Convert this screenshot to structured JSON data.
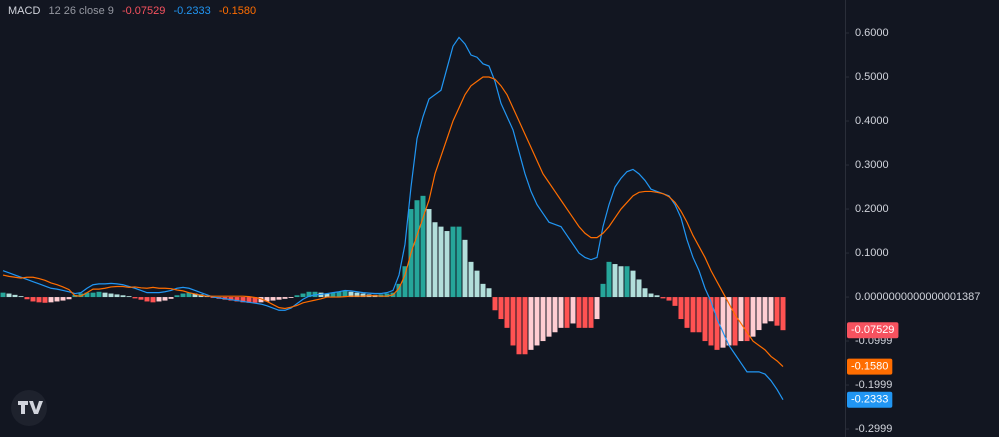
{
  "chart_data": {
    "type": "macd",
    "indicator": "MACD",
    "params": "12 26 close 9",
    "ylim": [
      -0.318,
      0.675
    ],
    "yticks": [
      {
        "value": 0.6,
        "label": "0.6000"
      },
      {
        "value": 0.5,
        "label": "0.5000"
      },
      {
        "value": 0.4,
        "label": "0.4000"
      },
      {
        "value": 0.3,
        "label": "0.3000"
      },
      {
        "value": 0.2,
        "label": "0.2000"
      },
      {
        "value": 0.1,
        "label": "0.1000"
      },
      {
        "value": 1.387e-16,
        "label": "0.0000000000000001387"
      },
      -0.0999,
      -0.1999,
      -0.2999
    ],
    "histogram_colors": {
      "rising_positive": "#26a69a",
      "falling_positive": "#b2dfdb",
      "falling_negative": "#ff5252",
      "rising_negative": "#ffcdd2"
    },
    "series": [
      {
        "color": "#f7525f",
        "last_label": "-0.07529",
        "values": [
          0.01,
          0.008,
          0.005,
          0.002,
          -0.005,
          -0.01,
          -0.012,
          -0.013,
          -0.012,
          -0.01,
          -0.008,
          -0.005,
          0.005,
          0.008,
          0.01,
          0.01,
          0.012,
          0.01,
          0.008,
          0.006,
          0.004,
          0.002,
          -0.003,
          -0.006,
          -0.01,
          -0.012,
          -0.01,
          -0.008,
          -0.004,
          0.004,
          0.008,
          0.01,
          0.008,
          0.006,
          0.003,
          -0.002,
          -0.004,
          -0.006,
          -0.008,
          -0.01,
          -0.012,
          -0.013,
          -0.013,
          -0.012,
          -0.01,
          -0.008,
          -0.006,
          -0.004,
          -0.002,
          0.004,
          0.008,
          0.012,
          0.012,
          0.01,
          0.008,
          0.01,
          0.012,
          0.014,
          0.012,
          0.01,
          0.008,
          0.006,
          0.005,
          0.006,
          0.008,
          0.01,
          0.03,
          0.07,
          0.2,
          0.22,
          0.23,
          0.2,
          0.17,
          0.16,
          0.15,
          0.16,
          0.16,
          0.13,
          0.08,
          0.06,
          0.03,
          0.02,
          -0.03,
          -0.05,
          -0.07,
          -0.11,
          -0.13,
          -0.13,
          -0.12,
          -0.11,
          -0.1,
          -0.09,
          -0.08,
          -0.07,
          -0.07,
          -0.06,
          -0.07,
          -0.07,
          -0.07,
          -0.05,
          0.03,
          0.08,
          0.075,
          0.07,
          0.07,
          0.06,
          0.04,
          0.02,
          0.008,
          0.004,
          -0.003,
          -0.008,
          -0.02,
          -0.05,
          -0.07,
          -0.08,
          -0.08,
          -0.1,
          -0.11,
          -0.12,
          -0.115,
          -0.11,
          -0.11,
          -0.1,
          -0.1,
          -0.09,
          -0.075,
          -0.06,
          -0.055,
          -0.065,
          -0.07529
        ]
      },
      {
        "color": "#2196f3",
        "last_label": "-0.2333",
        "values": [
          0.06,
          0.055,
          0.05,
          0.045,
          0.04,
          0.035,
          0.03,
          0.025,
          0.02,
          0.018,
          0.015,
          0.012,
          0.008,
          0.01,
          0.02,
          0.028,
          0.03,
          0.03,
          0.031,
          0.03,
          0.028,
          0.024,
          0.02,
          0.015,
          0.01,
          0.01,
          0.01,
          0.012,
          0.015,
          0.02,
          0.022,
          0.02,
          0.015,
          0.01,
          0.005,
          0.0,
          -0.002,
          -0.004,
          -0.006,
          -0.008,
          -0.01,
          -0.012,
          -0.014,
          -0.016,
          -0.02,
          -0.025,
          -0.03,
          -0.03,
          -0.025,
          -0.015,
          -0.005,
          0.002,
          0.005,
          0.006,
          0.008,
          0.01,
          0.012,
          0.015,
          0.014,
          0.012,
          0.01,
          0.009,
          0.008,
          0.008,
          0.01,
          0.015,
          0.05,
          0.12,
          0.25,
          0.36,
          0.41,
          0.45,
          0.46,
          0.47,
          0.52,
          0.57,
          0.59,
          0.575,
          0.55,
          0.545,
          0.53,
          0.525,
          0.49,
          0.44,
          0.41,
          0.38,
          0.33,
          0.28,
          0.24,
          0.21,
          0.19,
          0.17,
          0.165,
          0.16,
          0.14,
          0.12,
          0.1,
          0.09,
          0.085,
          0.09,
          0.16,
          0.21,
          0.25,
          0.27,
          0.285,
          0.29,
          0.28,
          0.265,
          0.245,
          0.24,
          0.235,
          0.23,
          0.21,
          0.18,
          0.13,
          0.09,
          0.06,
          0.02,
          -0.01,
          -0.05,
          -0.08,
          -0.11,
          -0.13,
          -0.15,
          -0.17,
          -0.17,
          -0.17,
          -0.175,
          -0.19,
          -0.21,
          -0.2333
        ]
      },
      {
        "color": "#ff6d00",
        "last_label": "-0.1580",
        "values": [
          0.05,
          0.047,
          0.045,
          0.043,
          0.045,
          0.045,
          0.042,
          0.038,
          0.032,
          0.028,
          0.023,
          0.017,
          0.003,
          0.002,
          0.01,
          0.018,
          0.018,
          0.02,
          0.023,
          0.024,
          0.024,
          0.022,
          0.023,
          0.021,
          0.02,
          0.022,
          0.02,
          0.02,
          0.019,
          0.016,
          0.014,
          0.01,
          0.007,
          0.004,
          0.002,
          0.002,
          0.002,
          0.002,
          0.002,
          0.002,
          0.002,
          0.001,
          -0.001,
          -0.004,
          -0.01,
          -0.017,
          -0.024,
          -0.026,
          -0.023,
          -0.019,
          -0.013,
          -0.01,
          -0.007,
          -0.004,
          0,
          0,
          0,
          0.001,
          0.002,
          0.002,
          0.002,
          0.003,
          0.003,
          0.002,
          0.002,
          0.005,
          0.02,
          0.05,
          0.1,
          0.14,
          0.18,
          0.22,
          0.28,
          0.32,
          0.36,
          0.4,
          0.43,
          0.46,
          0.48,
          0.49,
          0.5,
          0.5,
          0.495,
          0.48,
          0.46,
          0.43,
          0.4,
          0.37,
          0.34,
          0.31,
          0.28,
          0.26,
          0.24,
          0.22,
          0.2,
          0.18,
          0.16,
          0.145,
          0.135,
          0.135,
          0.145,
          0.16,
          0.18,
          0.2,
          0.215,
          0.23,
          0.238,
          0.24,
          0.24,
          0.238,
          0.235,
          0.228,
          0.215,
          0.195,
          0.17,
          0.14,
          0.115,
          0.09,
          0.06,
          0.035,
          0.01,
          -0.015,
          -0.04,
          -0.06,
          -0.08,
          -0.1,
          -0.11,
          -0.12,
          -0.135,
          -0.145,
          -0.158
        ]
      }
    ]
  }
}
